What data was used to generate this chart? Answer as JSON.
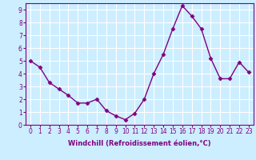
{
  "x": [
    0,
    1,
    2,
    3,
    4,
    5,
    6,
    7,
    8,
    9,
    10,
    11,
    12,
    13,
    14,
    15,
    16,
    17,
    18,
    19,
    20,
    21,
    22,
    23
  ],
  "y": [
    5.0,
    4.5,
    3.3,
    2.8,
    2.3,
    1.7,
    1.7,
    2.0,
    1.1,
    0.7,
    0.4,
    0.9,
    2.0,
    4.0,
    5.5,
    7.5,
    9.3,
    8.5,
    7.5,
    5.2,
    3.6,
    3.6,
    4.9,
    4.1
  ],
  "line_color": "#800080",
  "marker": "D",
  "marker_size": 2.5,
  "bg_color": "#cceeff",
  "grid_color": "#aaddcc",
  "xlabel": "Windchill (Refroidissement éolien,°C)",
  "xlim": [
    -0.5,
    23.5
  ],
  "ylim": [
    0,
    9.5
  ],
  "xticks": [
    0,
    1,
    2,
    3,
    4,
    5,
    6,
    7,
    8,
    9,
    10,
    11,
    12,
    13,
    14,
    15,
    16,
    17,
    18,
    19,
    20,
    21,
    22,
    23
  ],
  "yticks": [
    0,
    1,
    2,
    3,
    4,
    5,
    6,
    7,
    8,
    9
  ],
  "label_color": "#800080",
  "spine_color": "#800080",
  "tick_fontsize": 5.5,
  "xlabel_fontsize": 6.0,
  "linewidth": 1.0
}
